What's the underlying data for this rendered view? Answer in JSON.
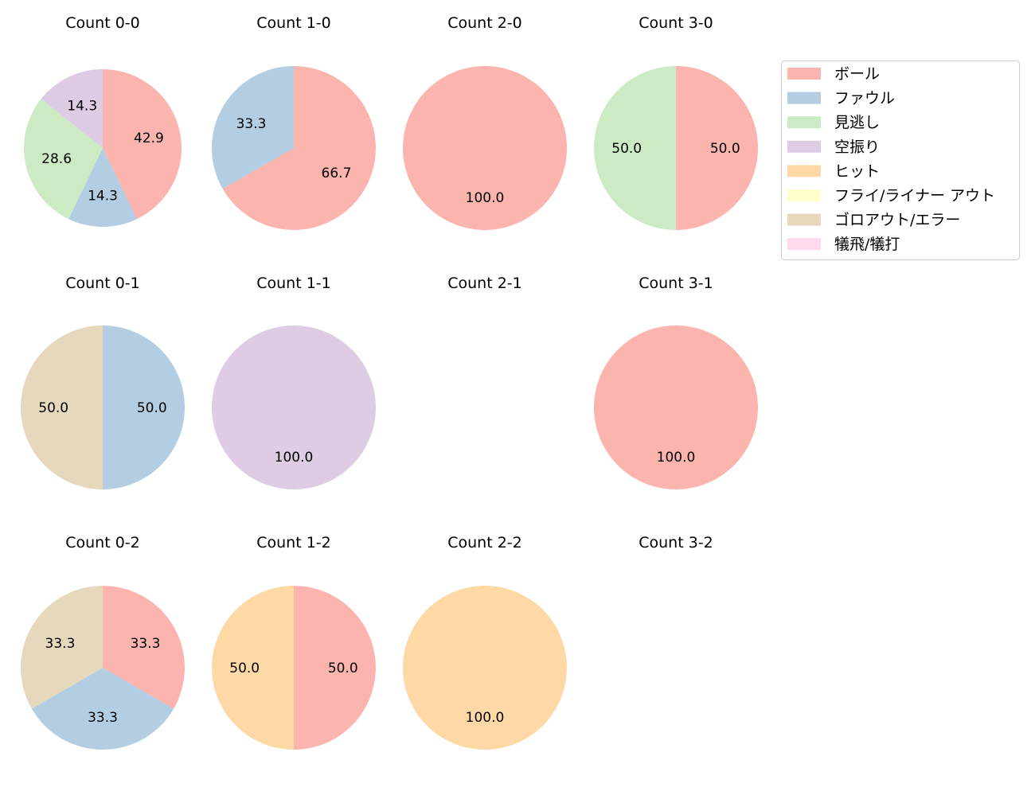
{
  "chart_data": {
    "type": "pie",
    "colors": {
      "ボール": "#fbb4ae",
      "ファウル": "#b3cde3",
      "見逃し": "#ccebc5",
      "空振り": "#decbe4",
      "ヒット": "#fed9a6",
      "フライ/ライナー アウト": "#ffffcc",
      "ゴロアウト/エラー": "#e5d8bd",
      "犠飛/犠打": "#fddaec"
    },
    "legend": {
      "position": "right",
      "entries": [
        "ボール",
        "ファウル",
        "見逃し",
        "空振り",
        "ヒット",
        "フライ/ライナー アウト",
        "ゴロアウト/エラー",
        "犠飛/犠打"
      ]
    },
    "start_angle": 90,
    "direction": "clockwise",
    "pies": [
      {
        "title": "Count 0-0",
        "slices": [
          {
            "label": "ボール",
            "value": 42.9
          },
          {
            "label": "ファウル",
            "value": 14.3
          },
          {
            "label": "見逃し",
            "value": 28.6
          },
          {
            "label": "空振り",
            "value": 14.3
          }
        ]
      },
      {
        "title": "Count 1-0",
        "slices": [
          {
            "label": "ボール",
            "value": 66.7
          },
          {
            "label": "ファウル",
            "value": 33.3
          }
        ]
      },
      {
        "title": "Count 2-0",
        "slices": [
          {
            "label": "ボール",
            "value": 100.0
          }
        ]
      },
      {
        "title": "Count 3-0",
        "slices": [
          {
            "label": "ボール",
            "value": 50.0
          },
          {
            "label": "見逃し",
            "value": 50.0
          }
        ]
      },
      {
        "title": "Count 0-1",
        "slices": [
          {
            "label": "ファウル",
            "value": 50.0
          },
          {
            "label": "ゴロアウト/エラー",
            "value": 50.0
          }
        ]
      },
      {
        "title": "Count 1-1",
        "slices": [
          {
            "label": "空振り",
            "value": 100.0
          }
        ]
      },
      {
        "title": "Count 2-1",
        "slices": []
      },
      {
        "title": "Count 3-1",
        "slices": [
          {
            "label": "ボール",
            "value": 100.0
          }
        ]
      },
      {
        "title": "Count 0-2",
        "slices": [
          {
            "label": "ボール",
            "value": 33.3
          },
          {
            "label": "ファウル",
            "value": 33.3
          },
          {
            "label": "ゴロアウト/エラー",
            "value": 33.3
          }
        ]
      },
      {
        "title": "Count 1-2",
        "slices": [
          {
            "label": "ボール",
            "value": 50.0
          },
          {
            "label": "ヒット",
            "value": 50.0
          }
        ]
      },
      {
        "title": "Count 2-2",
        "slices": [
          {
            "label": "ヒット",
            "value": 100.0
          }
        ]
      },
      {
        "title": "Count 3-2",
        "slices": []
      }
    ]
  }
}
